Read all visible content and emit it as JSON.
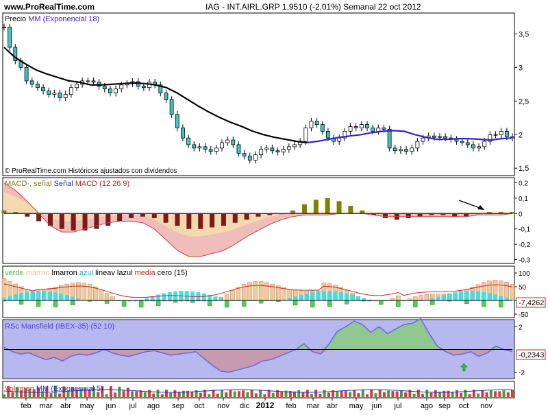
{
  "header": {
    "site": "www.ProRealTime.com",
    "title": "IAG - INT.AIRL.GRP    1,9510 (-2,01%)    Semanal  22 oct 2012"
  },
  "panels": {
    "price": {
      "caption_prefix": "Precio",
      "caption_series": "MM (Exponencial 18)",
      "footer": "© ProRealTime.com  Históricos ajustados con dividendos",
      "y_ticks": [
        "3,5",
        "3",
        "2,5",
        "2",
        "1,5"
      ]
    },
    "macd": {
      "caption_a": "MACD-, señal",
      "caption_b": "Señal",
      "caption_c": "MACD (12 26 9)",
      "y_ticks": [
        "0,2",
        "0,1",
        "0",
        "-0,1",
        "-0,2",
        "-0,3"
      ]
    },
    "osc": {
      "caption_parts": [
        "verde",
        "marron",
        "lmarron",
        "azul",
        "lineav",
        "lazul",
        "media",
        "cero (15)"
      ],
      "y_ticks": [
        "100",
        "50",
        "0",
        "-50"
      ],
      "value_label": "-7,4262"
    },
    "rsc": {
      "caption": "RSc Mansfield (IBEX-35) (52 10)",
      "y_ticks": [
        "2",
        "-2"
      ],
      "value_label": "-0,2343"
    },
    "volume": {
      "caption_a": "Volumen",
      "caption_b": "MM (Exponencial 5)"
    }
  },
  "x_axis": {
    "labels": [
      "feb",
      "mar",
      "abr",
      "may",
      "jun",
      "jul",
      "ago",
      "sep",
      "oct",
      "nov",
      "dic",
      "2012",
      "feb",
      "mar",
      "abr",
      "may",
      "jun",
      "jul",
      "ago",
      "sep",
      "oct",
      "nov"
    ]
  },
  "colors": {
    "ema": "#000000",
    "ema_recent": "#3a1fd0",
    "macd_hist_pos": "#808000",
    "macd_hist_neg": "#7a1a1a",
    "rsc_line": "#6b6be0",
    "up_candle": "#ffffff",
    "down_candle": "#3cc8c8"
  },
  "chart_data": [
    {
      "type": "candlestick",
      "title": "IAG - INT.AIRL.GRP",
      "series": [
        {
          "name": "Precio",
          "values": [
            3.6,
            3.3,
            3.1,
            3.0,
            2.8,
            2.75,
            2.7,
            2.65,
            2.6,
            2.62,
            2.55,
            2.6,
            2.7,
            2.75,
            2.8,
            2.8,
            2.78,
            2.72,
            2.68,
            2.62,
            2.68,
            2.74,
            2.76,
            2.79,
            2.72,
            2.7,
            2.78,
            2.74,
            2.62,
            2.52,
            2.3,
            2.1,
            1.95,
            1.85,
            1.8,
            1.82,
            1.78,
            1.75,
            1.8,
            1.88,
            1.92,
            1.85,
            1.72,
            1.68,
            1.62,
            1.7,
            1.78,
            1.8,
            1.76,
            1.74,
            1.78,
            1.82,
            1.85,
            1.9,
            2.1,
            2.2,
            2.15,
            2.05,
            1.95,
            1.9,
            1.95,
            2.05,
            2.12,
            2.1,
            2.15,
            2.1,
            2.05,
            2.1,
            2.08,
            1.8,
            1.76,
            1.78,
            1.75,
            1.8,
            1.9,
            1.95,
            1.98,
            1.96,
            1.97,
            1.95,
            1.93,
            1.9,
            1.88,
            1.85,
            1.8,
            1.82,
            1.9,
            2.0,
            2.0,
            2.05,
            1.97,
            1.95
          ]
        },
        {
          "name": "MM (Exponencial 18)",
          "values": [
            3.3,
            3.15,
            3.05,
            2.96,
            2.9,
            2.85,
            2.8,
            2.78,
            2.74,
            2.74,
            2.75,
            2.76,
            2.77,
            2.76,
            2.74,
            2.7,
            2.62,
            2.52,
            2.42,
            2.33,
            2.25,
            2.18,
            2.12,
            2.05,
            2.0,
            1.96,
            1.93,
            1.9,
            1.88,
            1.9,
            1.93,
            1.96,
            1.98,
            2.0,
            2.03,
            2.05,
            2.06,
            2.05,
            2.0,
            1.96,
            1.93,
            1.93,
            1.94,
            1.94,
            1.93,
            1.92,
            1.94,
            1.95
          ]
        }
      ],
      "ylim": [
        1.4,
        3.8
      ],
      "y_ticks": [
        3.5,
        3,
        2.5,
        2,
        1.5
      ]
    },
    {
      "type": "bar",
      "title": "MACD (12 26 9)",
      "series": [
        {
          "name": "MACD-, señal",
          "values": [
            0.02,
            0.01,
            -0.02,
            -0.05,
            -0.08,
            -0.1,
            -0.11,
            -0.11,
            -0.1,
            -0.08,
            -0.05,
            -0.03,
            -0.02,
            -0.03,
            -0.06,
            -0.08,
            -0.1,
            -0.1,
            -0.09,
            -0.08,
            -0.06,
            -0.04,
            -0.02,
            -0.01,
            0,
            0.02,
            0.06,
            0.09,
            0.1,
            0.08,
            0.05,
            0.02,
            -0.01,
            -0.03,
            -0.04,
            -0.03,
            -0.02,
            -0.01,
            -0.01,
            -0.02,
            -0.02,
            0,
            0.01,
            0.01,
            0.01
          ]
        },
        {
          "name": "Señal",
          "values": [
            0.2,
            0.15,
            0.08,
            0,
            -0.08,
            -0.12,
            -0.12,
            -0.1,
            -0.08,
            -0.06,
            -0.05,
            -0.05,
            -0.06,
            -0.1,
            -0.17,
            -0.24,
            -0.28,
            -0.28,
            -0.26,
            -0.24,
            -0.2,
            -0.15,
            -0.11,
            -0.07,
            -0.04,
            -0.02,
            -0.01,
            -0.01,
            -0.01,
            0,
            0,
            0,
            -0.01,
            -0.02,
            -0.02,
            -0.02,
            -0.02,
            -0.02,
            -0.02,
            -0.02,
            -0.02,
            -0.01,
            -0.01,
            -0.01,
            0
          ]
        }
      ],
      "ylim": [
        -0.32,
        0.22
      ]
    },
    {
      "type": "area",
      "title": "RSc Mansfield (IBEX-35) (52 10)",
      "series": [
        {
          "name": "RSc Mansfield (IBEX-35)",
          "values": [
            0.2,
            -0.2,
            -0.4,
            -0.3,
            -0.6,
            -0.9,
            -0.7,
            -1.0,
            -0.6,
            -0.4,
            -0.5,
            -0.3,
            0.0,
            -0.3,
            -0.5,
            -0.6,
            -0.4,
            -0.2,
            -0.1,
            -0.3,
            -0.5,
            -0.4,
            -0.3,
            -0.2,
            -0.8,
            -1.4,
            -1.9,
            -2.0,
            -1.8,
            -1.6,
            -1.4,
            -1.0,
            -0.9,
            -0.6,
            -0.3,
            0.0,
            0.5,
            -0.2,
            -0.4,
            0.5,
            1.6,
            2.0,
            2.5,
            2.2,
            1.5,
            2.0,
            1.4,
            1.8,
            2.2,
            2.3,
            2.7,
            1.4,
            0.3,
            -0.2,
            -0.5,
            -0.4,
            -0.2,
            -0.6,
            -0.3,
            0.3,
            0.0,
            -0.2
          ]
        }
      ],
      "ylim": [
        -2.5,
        2.5
      ],
      "last": -0.2343
    }
  ]
}
